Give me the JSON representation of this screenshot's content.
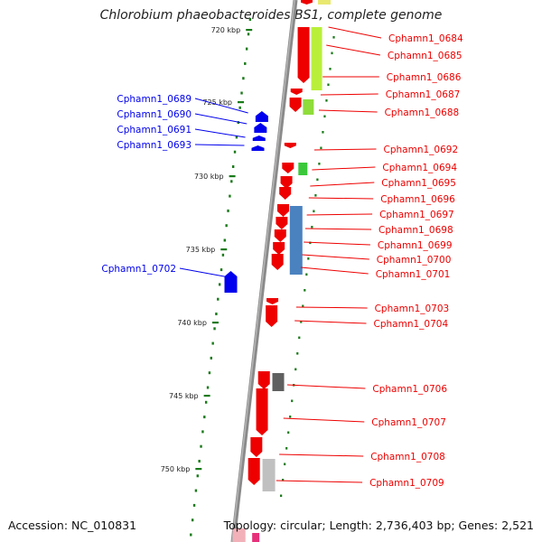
{
  "title": "Chlorobium phaeobacteroides BS1, complete genome",
  "footer": {
    "accession": "Accession: NC_010831",
    "topology": "Topology: circular; Length: 2,736,403 bp; Genes: 2,521"
  },
  "colors": {
    "forward_strand": "#ee0000",
    "reverse_strand": "#0000ee",
    "backbone": "#8a8a8a",
    "tick": "#1a7a1a",
    "category_yellowgreen": "#b9ef3a",
    "category_lightgreen": "#8fdc3a",
    "category_green": "#3ac83a",
    "category_steelblue": "#4a82c0",
    "category_darkgray": "#606060",
    "category_lightgray": "#c0c0c0",
    "category_pink": "#e7307a"
  },
  "scale_ticks": [
    "720 kbp",
    "725 kbp",
    "730 kbp",
    "735 kbp",
    "740 kbp",
    "745 kbp",
    "750 kbp"
  ],
  "genes_right": [
    "Cphamn1_0684",
    "Cphamn1_0685",
    "Cphamn1_0686",
    "Cphamn1_0687",
    "Cphamn1_0688",
    "Cphamn1_0692",
    "Cphamn1_0694",
    "Cphamn1_0695",
    "Cphamn1_0696",
    "Cphamn1_0697",
    "Cphamn1_0698",
    "Cphamn1_0699",
    "Cphamn1_0700",
    "Cphamn1_0701",
    "Cphamn1_0703",
    "Cphamn1_0704",
    "Cphamn1_0706",
    "Cphamn1_0707",
    "Cphamn1_0708",
    "Cphamn1_0709"
  ],
  "genes_left": [
    "Cphamn1_0689",
    "Cphamn1_0690",
    "Cphamn1_0691",
    "Cphamn1_0693",
    "Cphamn1_0702"
  ]
}
